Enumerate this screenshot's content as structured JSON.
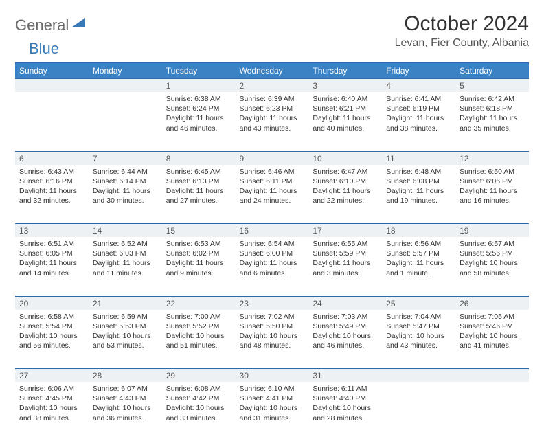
{
  "logo": {
    "word1": "General",
    "word2": "Blue"
  },
  "title": "October 2024",
  "location": "Levan, Fier County, Albania",
  "colors": {
    "header_bg": "#3a82c4",
    "header_text": "#ffffff",
    "border": "#2a6aa8",
    "daynum_bg": "#eef1f3",
    "logo_gray": "#6b6b6b",
    "logo_blue": "#3a79b7"
  },
  "weekdays": [
    "Sunday",
    "Monday",
    "Tuesday",
    "Wednesday",
    "Thursday",
    "Friday",
    "Saturday"
  ],
  "weeks": [
    [
      null,
      null,
      {
        "n": "1",
        "sr": "6:38 AM",
        "ss": "6:24 PM",
        "dl": "11 hours and 46 minutes."
      },
      {
        "n": "2",
        "sr": "6:39 AM",
        "ss": "6:23 PM",
        "dl": "11 hours and 43 minutes."
      },
      {
        "n": "3",
        "sr": "6:40 AM",
        "ss": "6:21 PM",
        "dl": "11 hours and 40 minutes."
      },
      {
        "n": "4",
        "sr": "6:41 AM",
        "ss": "6:19 PM",
        "dl": "11 hours and 38 minutes."
      },
      {
        "n": "5",
        "sr": "6:42 AM",
        "ss": "6:18 PM",
        "dl": "11 hours and 35 minutes."
      }
    ],
    [
      {
        "n": "6",
        "sr": "6:43 AM",
        "ss": "6:16 PM",
        "dl": "11 hours and 32 minutes."
      },
      {
        "n": "7",
        "sr": "6:44 AM",
        "ss": "6:14 PM",
        "dl": "11 hours and 30 minutes."
      },
      {
        "n": "8",
        "sr": "6:45 AM",
        "ss": "6:13 PM",
        "dl": "11 hours and 27 minutes."
      },
      {
        "n": "9",
        "sr": "6:46 AM",
        "ss": "6:11 PM",
        "dl": "11 hours and 24 minutes."
      },
      {
        "n": "10",
        "sr": "6:47 AM",
        "ss": "6:10 PM",
        "dl": "11 hours and 22 minutes."
      },
      {
        "n": "11",
        "sr": "6:48 AM",
        "ss": "6:08 PM",
        "dl": "11 hours and 19 minutes."
      },
      {
        "n": "12",
        "sr": "6:50 AM",
        "ss": "6:06 PM",
        "dl": "11 hours and 16 minutes."
      }
    ],
    [
      {
        "n": "13",
        "sr": "6:51 AM",
        "ss": "6:05 PM",
        "dl": "11 hours and 14 minutes."
      },
      {
        "n": "14",
        "sr": "6:52 AM",
        "ss": "6:03 PM",
        "dl": "11 hours and 11 minutes."
      },
      {
        "n": "15",
        "sr": "6:53 AM",
        "ss": "6:02 PM",
        "dl": "11 hours and 9 minutes."
      },
      {
        "n": "16",
        "sr": "6:54 AM",
        "ss": "6:00 PM",
        "dl": "11 hours and 6 minutes."
      },
      {
        "n": "17",
        "sr": "6:55 AM",
        "ss": "5:59 PM",
        "dl": "11 hours and 3 minutes."
      },
      {
        "n": "18",
        "sr": "6:56 AM",
        "ss": "5:57 PM",
        "dl": "11 hours and 1 minute."
      },
      {
        "n": "19",
        "sr": "6:57 AM",
        "ss": "5:56 PM",
        "dl": "10 hours and 58 minutes."
      }
    ],
    [
      {
        "n": "20",
        "sr": "6:58 AM",
        "ss": "5:54 PM",
        "dl": "10 hours and 56 minutes."
      },
      {
        "n": "21",
        "sr": "6:59 AM",
        "ss": "5:53 PM",
        "dl": "10 hours and 53 minutes."
      },
      {
        "n": "22",
        "sr": "7:00 AM",
        "ss": "5:52 PM",
        "dl": "10 hours and 51 minutes."
      },
      {
        "n": "23",
        "sr": "7:02 AM",
        "ss": "5:50 PM",
        "dl": "10 hours and 48 minutes."
      },
      {
        "n": "24",
        "sr": "7:03 AM",
        "ss": "5:49 PM",
        "dl": "10 hours and 46 minutes."
      },
      {
        "n": "25",
        "sr": "7:04 AM",
        "ss": "5:47 PM",
        "dl": "10 hours and 43 minutes."
      },
      {
        "n": "26",
        "sr": "7:05 AM",
        "ss": "5:46 PM",
        "dl": "10 hours and 41 minutes."
      }
    ],
    [
      {
        "n": "27",
        "sr": "6:06 AM",
        "ss": "4:45 PM",
        "dl": "10 hours and 38 minutes."
      },
      {
        "n": "28",
        "sr": "6:07 AM",
        "ss": "4:43 PM",
        "dl": "10 hours and 36 minutes."
      },
      {
        "n": "29",
        "sr": "6:08 AM",
        "ss": "4:42 PM",
        "dl": "10 hours and 33 minutes."
      },
      {
        "n": "30",
        "sr": "6:10 AM",
        "ss": "4:41 PM",
        "dl": "10 hours and 31 minutes."
      },
      {
        "n": "31",
        "sr": "6:11 AM",
        "ss": "4:40 PM",
        "dl": "10 hours and 28 minutes."
      },
      null,
      null
    ]
  ],
  "labels": {
    "sunrise": "Sunrise:",
    "sunset": "Sunset:",
    "daylight": "Daylight:"
  }
}
